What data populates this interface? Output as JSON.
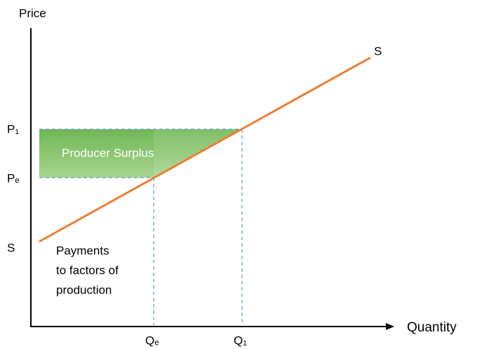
{
  "axes": {
    "y_label": "Price",
    "x_label": "Quantity"
  },
  "curve": {
    "label_top": "S",
    "label_left": "S"
  },
  "price_labels": {
    "p1": "P₁",
    "pe": "Pₑ"
  },
  "quantity_labels": {
    "qe": "Qₑ",
    "q1": "Q₁"
  },
  "regions": {
    "producer_surplus": "Producer Surplus",
    "payments": [
      "Payments",
      "to factors of",
      "production"
    ]
  }
}
